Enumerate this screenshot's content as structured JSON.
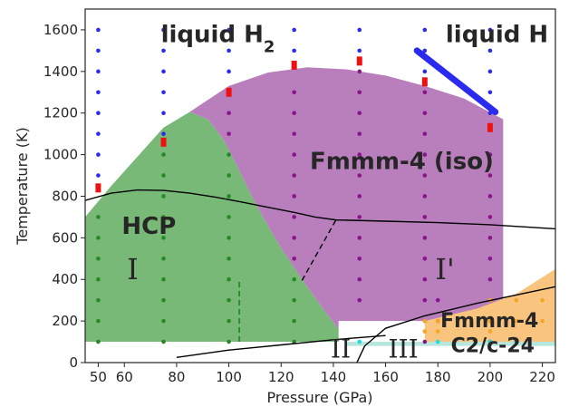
{
  "chart_data": {
    "type": "scatter",
    "xlabel": "Pressure (GPa)",
    "ylabel": "Temperature (K)",
    "xlim": [
      45,
      225
    ],
    "ylim": [
      0,
      1700
    ],
    "xticks": [
      {
        "value": 50,
        "label": "50"
      },
      {
        "value": 60,
        "label": "60"
      },
      {
        "value": 80,
        "label": "80"
      },
      {
        "value": 100,
        "label": "100"
      },
      {
        "value": 120,
        "label": "120"
      },
      {
        "value": 140,
        "label": "140"
      },
      {
        "value": 160,
        "label": "160"
      },
      {
        "value": 180,
        "label": "180"
      },
      {
        "value": 200,
        "label": "200"
      },
      {
        "value": 220,
        "label": "220"
      }
    ],
    "yticks": [
      {
        "value": 0,
        "label": "0"
      },
      {
        "value": 200,
        "label": "200"
      },
      {
        "value": 400,
        "label": "400"
      },
      {
        "value": 600,
        "label": "600"
      },
      {
        "value": 800,
        "label": "800"
      },
      {
        "value": 1000,
        "label": "1000"
      },
      {
        "value": 1200,
        "label": "1200"
      },
      {
        "value": 1400,
        "label": "1400"
      },
      {
        "value": 1600,
        "label": "1600"
      }
    ],
    "grid": false,
    "colors": {
      "hcp": "#79b978",
      "fmmm_iso": "#b97fbd",
      "fmmm4": "#f8c47e",
      "c2c": "#b7e6dc",
      "blue": "#2b2bf0",
      "green": "#258a25",
      "purple": "#8a148a",
      "cyan": "#14e0e6",
      "orange": "#f5a623",
      "red": "#ee1111",
      "line": "#000000"
    },
    "regions": [
      {
        "name": "HCP",
        "color": "hcp",
        "boundary": [
          [
            45,
            100
          ],
          [
            45,
            700
          ],
          [
            55,
            850
          ],
          [
            65,
            990
          ],
          [
            75,
            1130
          ],
          [
            85,
            1205
          ],
          [
            92,
            1170
          ],
          [
            98,
            1070
          ],
          [
            103,
            950
          ],
          [
            108,
            820
          ],
          [
            113,
            700
          ],
          [
            120,
            550
          ],
          [
            128,
            400
          ],
          [
            136,
            260
          ],
          [
            142,
            160
          ],
          [
            142,
            100
          ]
        ]
      },
      {
        "name": "Fmmm-4 (iso)",
        "color": "fmmm_iso",
        "boundary": [
          [
            85,
            1205
          ],
          [
            100,
            1330
          ],
          [
            115,
            1395
          ],
          [
            130,
            1420
          ],
          [
            145,
            1410
          ],
          [
            160,
            1380
          ],
          [
            175,
            1330
          ],
          [
            190,
            1270
          ],
          [
            205,
            1170
          ],
          [
            205,
            100
          ],
          [
            195,
            100
          ],
          [
            195,
            200
          ],
          [
            142,
            200
          ],
          [
            142,
            160
          ],
          [
            136,
            260
          ],
          [
            128,
            400
          ],
          [
            120,
            550
          ],
          [
            113,
            700
          ],
          [
            108,
            820
          ],
          [
            103,
            950
          ],
          [
            98,
            1070
          ],
          [
            92,
            1170
          ]
        ]
      },
      {
        "name": "Fmmm-4",
        "color": "fmmm4",
        "boundary": [
          [
            175,
            100
          ],
          [
            175,
            200
          ],
          [
            195,
            260
          ],
          [
            210,
            330
          ],
          [
            225,
            450
          ],
          [
            225,
            100
          ]
        ]
      },
      {
        "name": "C2/c-24",
        "color": "c2c",
        "boundary": [
          [
            145,
            100
          ],
          [
            225,
            100
          ],
          [
            225,
            80
          ],
          [
            145,
            80
          ]
        ]
      }
    ],
    "text_labels": [
      {
        "id": "liquid-h2-label",
        "text": "liquid H",
        "sub": "2",
        "x": 74,
        "y": 1540,
        "size": 26,
        "class": "phase-label"
      },
      {
        "id": "liquid-h-label",
        "text": "liquid H",
        "x": 183,
        "y": 1540,
        "size": 26,
        "class": "phase-label"
      },
      {
        "id": "fmmm4-iso-label",
        "text": "Fmmm-4 (iso)",
        "x": 131,
        "y": 930,
        "size": 26,
        "class": "phase-label"
      },
      {
        "id": "hcp-label",
        "text": "HCP",
        "x": 59,
        "y": 620,
        "size": 26,
        "class": "phase-label"
      },
      {
        "id": "fmmm4-label",
        "text": "Fmmm-4",
        "x": 181,
        "y": 170,
        "size": 22,
        "class": "phase-label"
      },
      {
        "id": "c2c24-label",
        "text": "C2/c-24",
        "x": 185,
        "y": 50,
        "size": 22,
        "class": "phase-label"
      },
      {
        "id": "roman-i-label",
        "text": "I",
        "x": 61,
        "y": 400,
        "size": 32,
        "class": "roman-label"
      },
      {
        "id": "roman-i-prime-label",
        "text": "I'",
        "x": 179,
        "y": 400,
        "size": 32,
        "class": "roman-label"
      },
      {
        "id": "roman-ii-label",
        "text": "II",
        "x": 139,
        "y": 25,
        "size": 28,
        "class": "roman-label"
      },
      {
        "id": "roman-iii-label",
        "text": "III",
        "x": 161,
        "y": 25,
        "size": 28,
        "class": "roman-label"
      }
    ],
    "lines": [
      {
        "name": "melting-curve",
        "style": "solid",
        "width": 1.4,
        "color": "line",
        "points": [
          [
            45,
            780
          ],
          [
            55,
            815
          ],
          [
            65,
            830
          ],
          [
            75,
            828
          ],
          [
            85,
            815
          ],
          [
            95,
            795
          ],
          [
            105,
            772
          ],
          [
            115,
            747
          ],
          [
            125,
            722
          ],
          [
            133,
            700
          ],
          [
            141,
            686
          ],
          [
            160,
            680
          ],
          [
            180,
            673
          ],
          [
            200,
            663
          ],
          [
            225,
            643
          ]
        ]
      },
      {
        "name": "dashed-i-to-iprime",
        "style": "dashed",
        "width": 1.4,
        "color": "line",
        "points": [
          [
            128,
            395
          ],
          [
            141,
            686
          ]
        ]
      },
      {
        "name": "dashed-hcp-vertical",
        "style": "dashed",
        "width": 1.8,
        "color": "green",
        "points": [
          [
            104,
            100
          ],
          [
            104,
            395
          ]
        ]
      },
      {
        "name": "boundary-ii-iii-lower",
        "style": "solid",
        "width": 1.4,
        "color": "line",
        "points": [
          [
            80,
            25
          ],
          [
            100,
            60
          ],
          [
            120,
            85
          ],
          [
            140,
            110
          ],
          [
            160,
            130
          ]
        ]
      },
      {
        "name": "boundary-ii-iii-diagonal",
        "style": "solid",
        "width": 1.4,
        "color": "line",
        "points": [
          [
            149,
            0
          ],
          [
            152,
            80
          ],
          [
            160,
            165
          ],
          [
            175,
            225
          ],
          [
            195,
            285
          ],
          [
            225,
            365
          ]
        ]
      },
      {
        "name": "liquid-h-thick",
        "style": "solid",
        "width": 7,
        "color": "blue",
        "points": [
          [
            172,
            1500
          ],
          [
            202,
            1205
          ]
        ]
      }
    ],
    "point_columns": [
      {
        "x": 50,
        "groups": [
          {
            "color": "blue",
            "temps": [
              1600,
              1500,
              1400,
              1300,
              1200,
              1100,
              1000,
              900
            ]
          },
          {
            "color": "red",
            "temps": [
              840
            ]
          },
          {
            "color": "green",
            "temps": [
              700,
              600,
              500,
              400,
              300,
              200,
              100
            ]
          }
        ]
      },
      {
        "x": 75,
        "groups": [
          {
            "color": "blue",
            "temps": [
              1600,
              1500,
              1400,
              1300,
              1200,
              1100
            ]
          },
          {
            "color": "red",
            "temps": [
              1060
            ]
          },
          {
            "color": "green",
            "temps": [
              1000,
              900,
              800,
              700,
              600,
              500,
              400,
              300,
              200,
              100
            ]
          }
        ]
      },
      {
        "x": 100,
        "groups": [
          {
            "color": "blue",
            "temps": [
              1600,
              1500,
              1400
            ]
          },
          {
            "color": "red",
            "temps": [
              1300
            ]
          },
          {
            "color": "purple",
            "temps": [
              1200,
              1100
            ]
          },
          {
            "color": "green",
            "temps": [
              1000,
              900,
              800,
              700,
              600,
              500,
              400,
              300,
              200,
              100
            ]
          }
        ]
      },
      {
        "x": 125,
        "groups": [
          {
            "color": "blue",
            "temps": [
              1600,
              1500
            ]
          },
          {
            "color": "red",
            "temps": [
              1430
            ]
          },
          {
            "color": "purple",
            "temps": [
              1300,
              1200,
              1100,
              1000,
              900,
              800,
              700,
              600,
              500
            ]
          },
          {
            "color": "green",
            "temps": [
              400,
              300,
              200,
              100
            ]
          }
        ]
      },
      {
        "x": 150,
        "groups": [
          {
            "color": "blue",
            "temps": [
              1600,
              1500
            ]
          },
          {
            "color": "red",
            "temps": [
              1450
            ]
          },
          {
            "color": "purple",
            "temps": [
              1400,
              1300,
              1200,
              1100,
              1000,
              900,
              800,
              700,
              600,
              500,
              400,
              300
            ]
          },
          {
            "color": "cyan",
            "temps": [
              100
            ]
          }
        ]
      },
      {
        "x": 175,
        "groups": [
          {
            "color": "blue",
            "temps": [
              1600,
              1500,
              1400
            ]
          },
          {
            "color": "red",
            "temps": [
              1350
            ]
          },
          {
            "color": "purple",
            "temps": [
              1300,
              1200,
              1100,
              1000,
              900,
              800,
              700,
              600,
              500,
              400,
              300,
              200,
              100
            ]
          },
          {
            "color": "orange",
            "temps": [
              200,
              150
            ]
          }
        ]
      },
      {
        "x": 180,
        "groups": [
          {
            "color": "purple",
            "temps": [
              300,
              200
            ]
          },
          {
            "color": "orange",
            "temps": [
              200,
              150
            ]
          },
          {
            "color": "cyan",
            "temps": [
              100
            ]
          }
        ]
      },
      {
        "x": 200,
        "groups": [
          {
            "color": "blue",
            "temps": [
              1600,
              1500,
              1400,
              1300,
              1200
            ]
          },
          {
            "color": "red",
            "temps": [
              1130
            ]
          },
          {
            "color": "purple",
            "temps": [
              1000,
              900,
              800,
              700,
              600,
              500,
              400,
              300,
              200,
              100
            ]
          },
          {
            "color": "orange",
            "temps": [
              300,
              200,
              150
            ]
          },
          {
            "color": "cyan",
            "temps": [
              100
            ]
          }
        ]
      },
      {
        "x": 210,
        "groups": [
          {
            "color": "orange",
            "temps": [
              300,
              200
            ]
          },
          {
            "color": "cyan",
            "temps": [
              100
            ]
          }
        ]
      },
      {
        "x": 220,
        "groups": [
          {
            "color": "orange",
            "temps": [
              300,
              200
            ]
          }
        ]
      }
    ]
  }
}
